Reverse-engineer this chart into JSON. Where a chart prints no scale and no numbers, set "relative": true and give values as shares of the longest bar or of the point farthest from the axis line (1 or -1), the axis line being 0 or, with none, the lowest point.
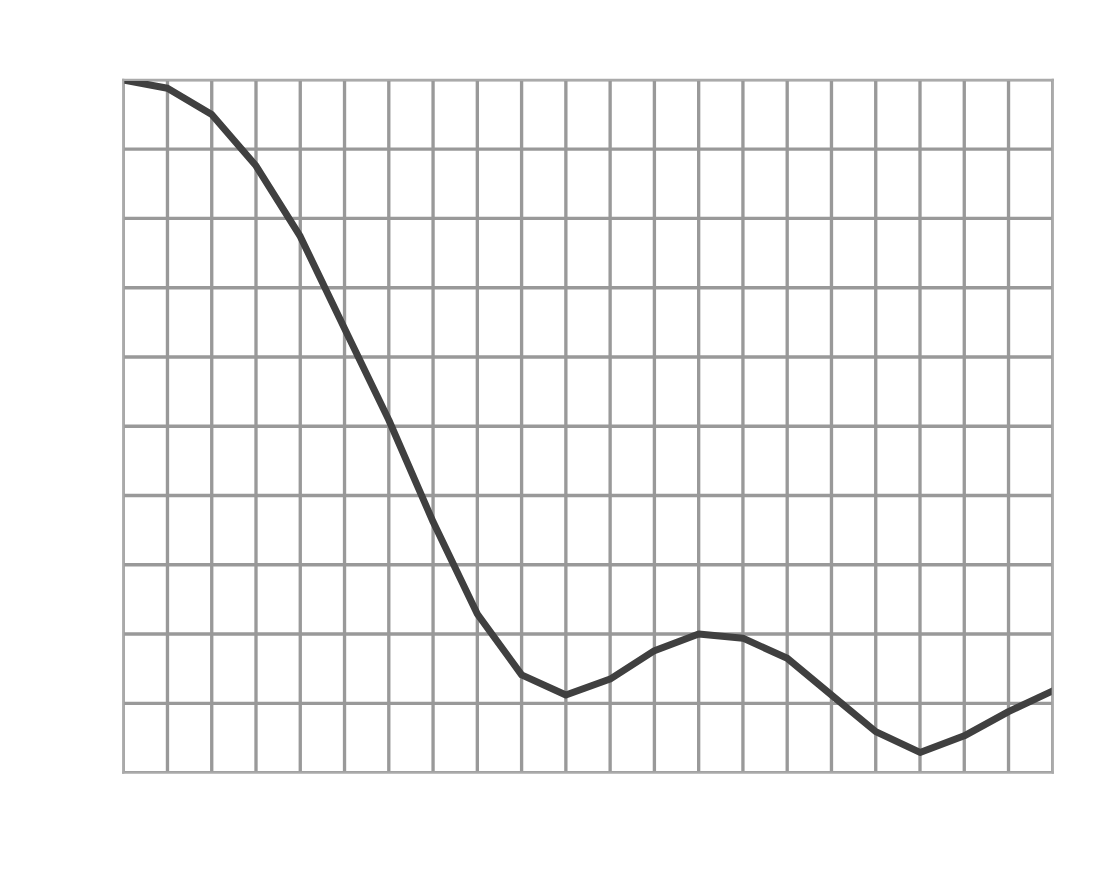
{
  "chart_data": {
    "type": "line",
    "relative": true,
    "grid": true,
    "color": "#404040",
    "marker": "none",
    "line_style": "solid",
    "categories": [
      null,
      null,
      null,
      null,
      null,
      null,
      null,
      null,
      null,
      null,
      null,
      null,
      null,
      null,
      null,
      null,
      null,
      null,
      null,
      null,
      null,
      null
    ],
    "values": [
      1,
      0.988,
      0.95,
      0.876,
      0.774,
      0.641,
      0.509,
      0.362,
      0.229,
      0.141,
      0.112,
      0.135,
      0.176,
      0.2,
      0.194,
      0.165,
      0.112,
      0.059,
      0.029,
      0.053,
      0.088,
      0.118
    ]
  }
}
